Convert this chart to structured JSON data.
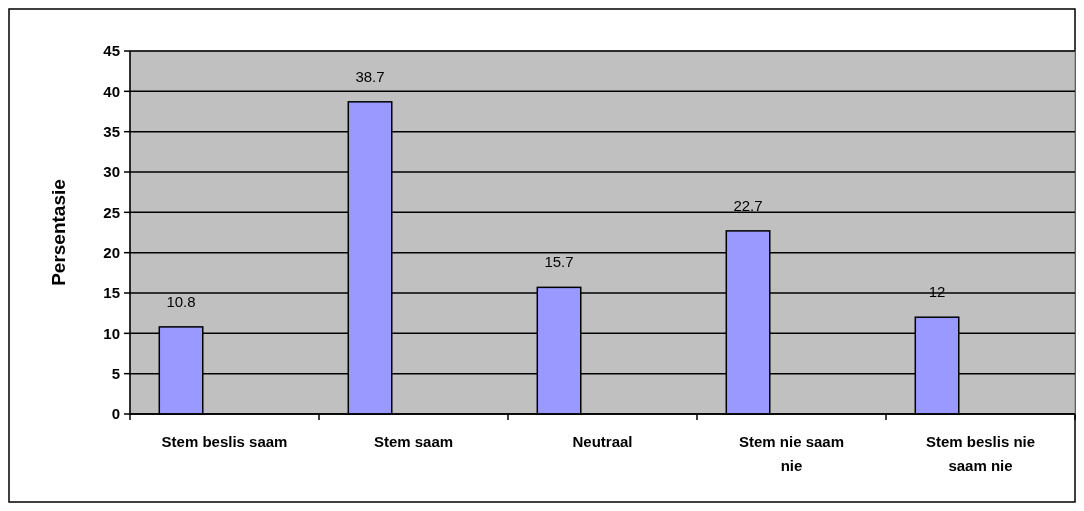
{
  "chart_data": {
    "type": "bar",
    "ylabel": "Persentasie",
    "categories": [
      "Stem beslis saam",
      "Stem saam",
      "Neutraal",
      "Stem nie saam nie",
      "Stem beslis nie saam nie"
    ],
    "values": [
      10.8,
      38.7,
      15.7,
      22.7,
      12
    ],
    "color": "#9999ff",
    "ylim": [
      0,
      45
    ],
    "yticks": [
      0,
      5,
      10,
      15,
      20,
      25,
      30,
      35,
      40,
      45
    ],
    "grid": "y",
    "data_labels": true
  }
}
